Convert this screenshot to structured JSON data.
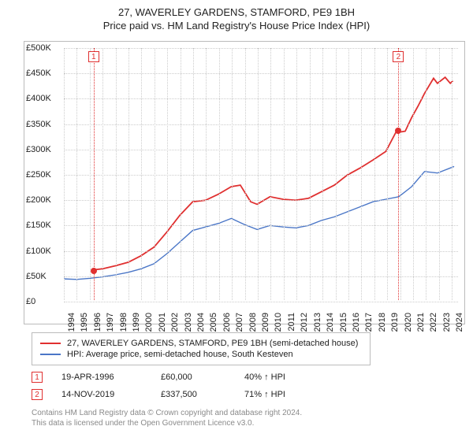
{
  "title": "27, WAVERLEY GARDENS, STAMFORD, PE9 1BH",
  "subtitle": "Price paid vs. HM Land Registry's House Price Index (HPI)",
  "chart": {
    "type": "line",
    "x_years": [
      1994,
      1995,
      1996,
      1997,
      1998,
      1999,
      2000,
      2001,
      2002,
      2003,
      2004,
      2005,
      2006,
      2007,
      2008,
      2009,
      2010,
      2011,
      2012,
      2013,
      2014,
      2015,
      2016,
      2017,
      2018,
      2019,
      2020,
      2021,
      2022,
      2023,
      2024
    ],
    "y_ticks": [
      0,
      50000,
      100000,
      150000,
      200000,
      250000,
      300000,
      350000,
      400000,
      450000,
      500000
    ],
    "y_tick_labels": [
      "£0",
      "£50K",
      "£100K",
      "£150K",
      "£200K",
      "£250K",
      "£300K",
      "£350K",
      "£400K",
      "£450K",
      "£500K"
    ],
    "ylim": [
      0,
      500000
    ],
    "xlim": [
      1994,
      2024.6
    ],
    "background_color": "#ffffff",
    "grid_color": "#cccccc",
    "border_color": "#bbbbbb",
    "series": [
      {
        "name": "27, WAVERLEY GARDENS, STAMFORD, PE9 1BH (semi-detached house)",
        "color": "#e03030",
        "line_width": 1.8,
        "data": [
          [
            1996.3,
            60000
          ],
          [
            1997,
            62000
          ],
          [
            1998,
            68000
          ],
          [
            1999,
            75000
          ],
          [
            2000,
            88000
          ],
          [
            2001,
            105000
          ],
          [
            2002,
            135000
          ],
          [
            2003,
            168000
          ],
          [
            2004,
            195000
          ],
          [
            2005,
            198000
          ],
          [
            2006,
            210000
          ],
          [
            2007,
            225000
          ],
          [
            2007.7,
            228000
          ],
          [
            2008.5,
            195000
          ],
          [
            2009,
            190000
          ],
          [
            2010,
            205000
          ],
          [
            2011,
            200000
          ],
          [
            2012,
            198000
          ],
          [
            2013,
            202000
          ],
          [
            2014,
            215000
          ],
          [
            2015,
            228000
          ],
          [
            2016,
            248000
          ],
          [
            2017,
            262000
          ],
          [
            2018,
            278000
          ],
          [
            2019,
            295000
          ],
          [
            2019.87,
            337500
          ],
          [
            2020,
            333000
          ],
          [
            2020.5,
            335000
          ],
          [
            2021,
            362000
          ],
          [
            2021.5,
            385000
          ],
          [
            2022,
            410000
          ],
          [
            2022.7,
            440000
          ],
          [
            2023,
            430000
          ],
          [
            2023.6,
            442000
          ],
          [
            2024,
            430000
          ],
          [
            2024.2,
            435000
          ]
        ]
      },
      {
        "name": "HPI: Average price, semi-detached house, South Kesteven",
        "color": "#4a76c7",
        "line_width": 1.4,
        "data": [
          [
            1994,
            42000
          ],
          [
            1995,
            41000
          ],
          [
            1996,
            43000
          ],
          [
            1997,
            46000
          ],
          [
            1998,
            50000
          ],
          [
            1999,
            55000
          ],
          [
            2000,
            62000
          ],
          [
            2001,
            72000
          ],
          [
            2002,
            92000
          ],
          [
            2003,
            115000
          ],
          [
            2004,
            138000
          ],
          [
            2005,
            145000
          ],
          [
            2006,
            152000
          ],
          [
            2007,
            162000
          ],
          [
            2008,
            150000
          ],
          [
            2009,
            140000
          ],
          [
            2010,
            148000
          ],
          [
            2011,
            145000
          ],
          [
            2012,
            143000
          ],
          [
            2013,
            148000
          ],
          [
            2014,
            158000
          ],
          [
            2015,
            165000
          ],
          [
            2016,
            175000
          ],
          [
            2017,
            185000
          ],
          [
            2018,
            195000
          ],
          [
            2019,
            200000
          ],
          [
            2020,
            205000
          ],
          [
            2021,
            225000
          ],
          [
            2022,
            255000
          ],
          [
            2023,
            252000
          ],
          [
            2024,
            262000
          ],
          [
            2024.3,
            265000
          ]
        ]
      }
    ],
    "markers": [
      {
        "n": "1",
        "x": 1996.3,
        "y": 60000,
        "label_top": true
      },
      {
        "n": "2",
        "x": 2019.87,
        "y": 337500,
        "label_top": true
      }
    ]
  },
  "legend": [
    {
      "color": "#e03030",
      "label": "27, WAVERLEY GARDENS, STAMFORD, PE9 1BH (semi-detached house)"
    },
    {
      "color": "#4a76c7",
      "label": "HPI: Average price, semi-detached house, South Kesteven"
    }
  ],
  "sales": [
    {
      "n": "1",
      "date": "19-APR-1996",
      "price": "£60,000",
      "pct": "40% ↑ HPI"
    },
    {
      "n": "2",
      "date": "14-NOV-2019",
      "price": "£337,500",
      "pct": "71% ↑ HPI"
    }
  ],
  "footer_line1": "Contains HM Land Registry data © Crown copyright and database right 2024.",
  "footer_line2": "This data is licensed under the Open Government Licence v3.0."
}
